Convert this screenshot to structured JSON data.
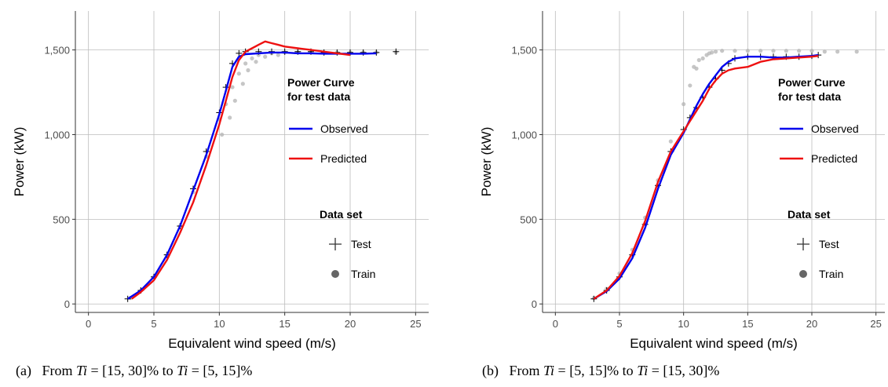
{
  "chart_data": [
    {
      "type": "scatter",
      "panel": "(a)",
      "caption": {
        "prefix": "(a)",
        "text_parts": [
          "From ",
          "Ti",
          " = [15, 30]% to ",
          "Ti",
          " = [5, 15]%"
        ]
      },
      "xlabel": "Equivalent wind speed (m/s)",
      "ylabel": "Power (kW)",
      "xlim": [
        -1,
        26
      ],
      "ylim": [
        -50,
        1730
      ],
      "xticks": [
        0,
        5,
        10,
        15,
        20,
        25
      ],
      "yticks": [
        0,
        500,
        1000,
        1500
      ],
      "ytick_labels": [
        "0",
        "500",
        "1,000",
        "1,500"
      ],
      "grid": true,
      "legend_datasets": {
        "title": "Data set",
        "entries": [
          "Test",
          "Train"
        ],
        "placement": "right"
      },
      "legend_curves": {
        "title": [
          "Power Curve",
          "for test data"
        ],
        "entries": [
          "Observed",
          "Predicted"
        ],
        "placement": "top-right"
      },
      "series": [
        {
          "name": "Train",
          "kind": "points",
          "color": "#b3b3b3",
          "x": [
            3.2,
            4,
            5,
            6,
            7,
            8,
            9,
            10,
            10.5,
            11,
            11.5,
            12,
            12.5,
            13,
            14,
            15,
            16,
            17,
            18,
            19,
            20,
            21,
            22,
            23.5,
            10.2,
            10.8,
            11.2,
            11.8,
            12.2,
            12.8,
            13.5,
            14.5
          ],
          "y": [
            35,
            80,
            160,
            290,
            460,
            660,
            870,
            1090,
            1180,
            1280,
            1360,
            1420,
            1450,
            1470,
            1480,
            1485,
            1485,
            1485,
            1485,
            1485,
            1485,
            1485,
            1485,
            1485,
            1000,
            1100,
            1200,
            1300,
            1380,
            1430,
            1460,
            1470
          ]
        },
        {
          "name": "Test",
          "kind": "points",
          "color": "#000000",
          "x": [
            3,
            4,
            5,
            6,
            7,
            8,
            9,
            10,
            10.5,
            11,
            11.5,
            12,
            13,
            14,
            15,
            16,
            17,
            18,
            19,
            20,
            21,
            22,
            23.5
          ],
          "y": [
            30,
            80,
            160,
            290,
            460,
            680,
            900,
            1130,
            1280,
            1420,
            1480,
            1490,
            1490,
            1490,
            1490,
            1490,
            1490,
            1485,
            1485,
            1485,
            1485,
            1485,
            1490
          ]
        },
        {
          "name": "Observed",
          "kind": "line",
          "color": "#0000ee",
          "x": [
            3,
            4,
            5,
            6,
            7,
            8,
            9,
            10,
            10.5,
            11,
            11.5,
            12,
            13,
            14,
            15,
            16,
            17,
            18,
            19,
            20,
            21,
            22
          ],
          "y": [
            30,
            80,
            160,
            290,
            460,
            670,
            880,
            1120,
            1260,
            1400,
            1460,
            1475,
            1480,
            1485,
            1485,
            1480,
            1480,
            1478,
            1478,
            1478,
            1478,
            1480
          ]
        },
        {
          "name": "Predicted",
          "kind": "line",
          "color": "#ee1111",
          "x": [
            3.3,
            4,
            5,
            6,
            7,
            8,
            9,
            10,
            10.5,
            11,
            11.5,
            12,
            12.5,
            13,
            13.5,
            14,
            14.5,
            15,
            16,
            17,
            18,
            19,
            20
          ],
          "y": [
            30,
            70,
            140,
            260,
            420,
            600,
            820,
            1060,
            1200,
            1340,
            1440,
            1490,
            1510,
            1530,
            1550,
            1540,
            1530,
            1520,
            1510,
            1500,
            1490,
            1480,
            1470
          ]
        }
      ]
    },
    {
      "type": "scatter",
      "panel": "(b)",
      "caption": {
        "prefix": "(b)",
        "text_parts": [
          "From ",
          "Ti",
          " = [5, 15]% to ",
          "Ti",
          " = [15, 30]%"
        ]
      },
      "xlabel": "Equivalent wind speed (m/s)",
      "ylabel": "Power (kW)",
      "xlim": [
        -1,
        26
      ],
      "ylim": [
        -50,
        1730
      ],
      "xticks": [
        0,
        5,
        10,
        15,
        20,
        25
      ],
      "yticks": [
        0,
        500,
        1000,
        1500
      ],
      "ytick_labels": [
        "0",
        "500",
        "1,000",
        "1,500"
      ],
      "grid": true,
      "legend_datasets": {
        "title": "Data set",
        "entries": [
          "Test",
          "Train"
        ],
        "placement": "right"
      },
      "legend_curves": {
        "title": [
          "Power Curve",
          "for test data"
        ],
        "entries": [
          "Observed",
          "Predicted"
        ],
        "placement": "top-right"
      },
      "series": [
        {
          "name": "Train",
          "kind": "points",
          "color": "#b3b3b3",
          "x": [
            3,
            4,
            5,
            6,
            7,
            8,
            9,
            10,
            10.5,
            11,
            11.5,
            12,
            12.5,
            13,
            14,
            15,
            16,
            17,
            18,
            19,
            20,
            21,
            22,
            23.5,
            10.8,
            11.2,
            11.8,
            12.2
          ],
          "y": [
            35,
            90,
            180,
            320,
            510,
            730,
            960,
            1180,
            1290,
            1390,
            1450,
            1480,
            1490,
            1495,
            1495,
            1495,
            1495,
            1495,
            1495,
            1495,
            1495,
            1490,
            1490,
            1490,
            1400,
            1440,
            1470,
            1485
          ]
        },
        {
          "name": "Test",
          "kind": "points",
          "color": "#000000",
          "x": [
            3,
            4,
            5,
            6,
            7,
            8,
            9,
            10,
            10.5,
            11,
            11.5,
            12,
            12.5,
            13,
            13.5,
            14,
            15,
            16,
            17,
            18,
            19,
            20,
            20.5
          ],
          "y": [
            30,
            80,
            160,
            290,
            470,
            700,
            900,
            1030,
            1100,
            1160,
            1220,
            1280,
            1330,
            1380,
            1420,
            1450,
            1460,
            1460,
            1460,
            1460,
            1460,
            1465,
            1470
          ]
        },
        {
          "name": "Observed",
          "kind": "line",
          "color": "#0000ee",
          "x": [
            3,
            4,
            5,
            6,
            7,
            8,
            9,
            10,
            10.5,
            11,
            11.5,
            12,
            12.5,
            13,
            13.5,
            14,
            15,
            16,
            17,
            18,
            19,
            20,
            20.5
          ],
          "y": [
            30,
            75,
            150,
            270,
            450,
            680,
            880,
            1010,
            1090,
            1170,
            1240,
            1300,
            1350,
            1400,
            1430,
            1450,
            1460,
            1460,
            1455,
            1455,
            1460,
            1465,
            1470
          ]
        },
        {
          "name": "Predicted",
          "kind": "line",
          "color": "#ee1111",
          "x": [
            3,
            4,
            5,
            6,
            7,
            8,
            9,
            10,
            10.5,
            11,
            11.5,
            12,
            12.5,
            13,
            13.5,
            14,
            15,
            16,
            17,
            18,
            19,
            20,
            20.5
          ],
          "y": [
            30,
            80,
            165,
            300,
            490,
            720,
            900,
            1020,
            1080,
            1140,
            1200,
            1270,
            1320,
            1360,
            1380,
            1390,
            1400,
            1430,
            1445,
            1450,
            1455,
            1460,
            1465
          ]
        }
      ]
    }
  ]
}
